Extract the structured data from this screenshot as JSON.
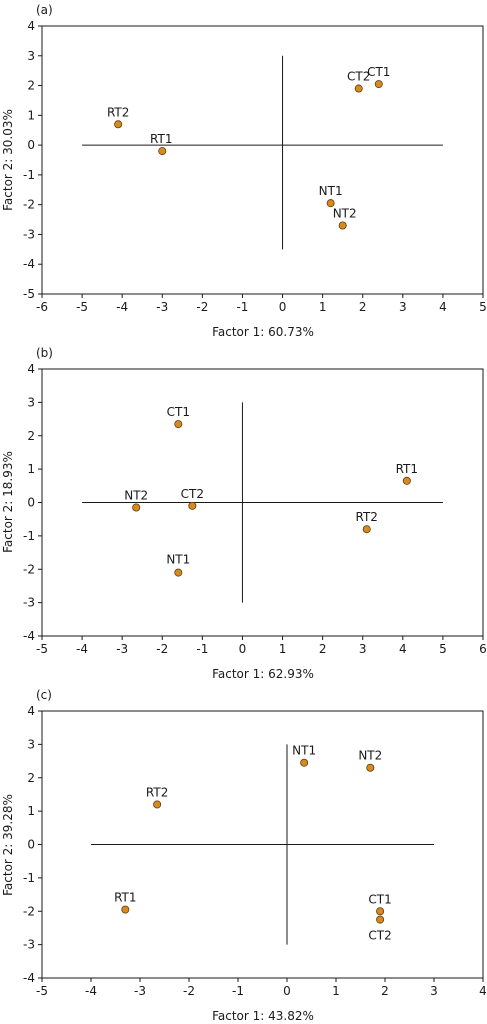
{
  "chart_data": [
    {
      "type": "scatter",
      "panel_label": "(a)",
      "xlabel": "Factor 1: 60.73%",
      "ylabel": "Factor 2: 30.03%",
      "xlim": [
        -6,
        5
      ],
      "ylim": [
        -5,
        4
      ],
      "xticks": [
        -6,
        -5,
        -4,
        -3,
        -2,
        -1,
        0,
        1,
        2,
        3,
        4,
        5
      ],
      "yticks": [
        -5,
        -4,
        -3,
        -2,
        -1,
        0,
        1,
        2,
        3,
        4
      ],
      "cross_h": [
        -5,
        4
      ],
      "cross_v": [
        -3.5,
        3
      ],
      "points": [
        {
          "label": "RT2",
          "x": -4.1,
          "y": 0.7
        },
        {
          "label": "RT1",
          "x": -3.0,
          "y": -0.2
        },
        {
          "label": "CT2",
          "x": 1.9,
          "y": 1.9
        },
        {
          "label": "CT1",
          "x": 2.4,
          "y": 2.05
        },
        {
          "label": "NT1",
          "x": 1.2,
          "y": -1.95
        },
        {
          "label": "NT2",
          "x": 1.5,
          "y": -2.7
        }
      ]
    },
    {
      "type": "scatter",
      "panel_label": "(b)",
      "xlabel": "Factor 1: 62.93%",
      "ylabel": "Factor 2: 18.93%",
      "xlim": [
        -5,
        6
      ],
      "ylim": [
        -4,
        4
      ],
      "xticks": [
        -5,
        -4,
        -3,
        -2,
        -1,
        0,
        1,
        2,
        3,
        4,
        5,
        6
      ],
      "yticks": [
        -4,
        -3,
        -2,
        -1,
        0,
        1,
        2,
        3,
        4
      ],
      "cross_h": [
        -4,
        5
      ],
      "cross_v": [
        -3,
        3
      ],
      "points": [
        {
          "label": "CT1",
          "x": -1.6,
          "y": 2.35
        },
        {
          "label": "NT2",
          "x": -2.65,
          "y": -0.15
        },
        {
          "label": "CT2",
          "x": -1.25,
          "y": -0.1
        },
        {
          "label": "NT1",
          "x": -1.6,
          "y": -2.1
        },
        {
          "label": "RT1",
          "x": 4.1,
          "y": 0.65
        },
        {
          "label": "RT2",
          "x": 3.1,
          "y": -0.8
        }
      ]
    },
    {
      "type": "scatter",
      "panel_label": "(c)",
      "xlabel": "Factor 1: 43.82%",
      "ylabel": "Factor 2: 39.28%",
      "xlim": [
        -5,
        4
      ],
      "ylim": [
        -4,
        4
      ],
      "xticks": [
        -5,
        -4,
        -3,
        -2,
        -1,
        0,
        1,
        2,
        3,
        4
      ],
      "yticks": [
        -4,
        -3,
        -2,
        -1,
        0,
        1,
        2,
        3,
        4
      ],
      "cross_h": [
        -4,
        3
      ],
      "cross_v": [
        -3,
        3
      ],
      "points": [
        {
          "label": "NT1",
          "x": 0.35,
          "y": 2.45
        },
        {
          "label": "NT2",
          "x": 1.7,
          "y": 2.3
        },
        {
          "label": "RT2",
          "x": -2.65,
          "y": 1.2
        },
        {
          "label": "RT1",
          "x": -3.3,
          "y": -1.95
        },
        {
          "label": "CT1",
          "x": 1.9,
          "y": -2.0
        },
        {
          "label": "CT2",
          "x": 1.9,
          "y": -2.25
        }
      ]
    }
  ]
}
